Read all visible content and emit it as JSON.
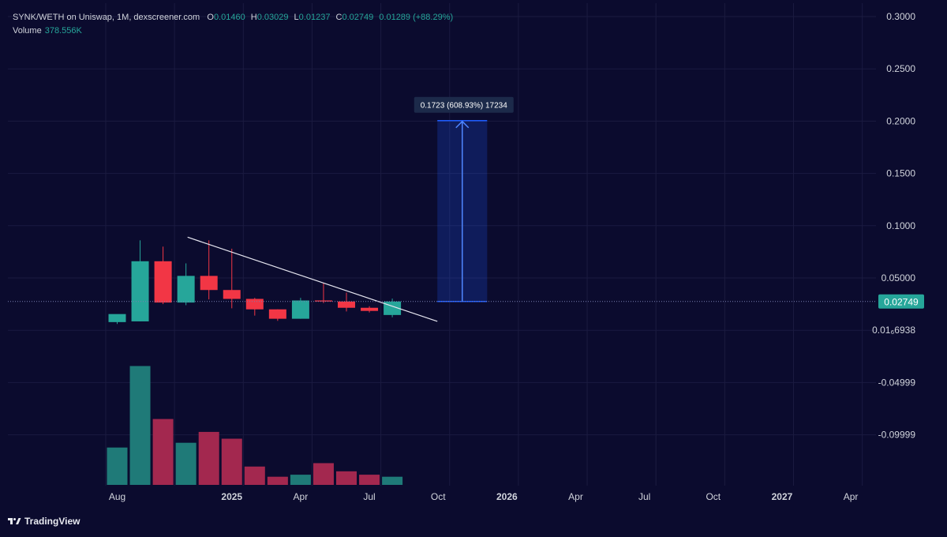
{
  "header": {
    "title": "SYNK/WETH on Uniswap, 1M, dexscreener.com",
    "open_label": "O",
    "open": "0.01460",
    "high_label": "H",
    "high": "0.03029",
    "low_label": "L",
    "low": "0.01237",
    "close_label": "C",
    "close": "0.02749",
    "change": "0.01289 (+88.29%)",
    "volume_label": "Volume",
    "volume_value": "378.556K"
  },
  "brand": {
    "name": "TradingView",
    "icon": "tradingview-logo-icon"
  },
  "colors": {
    "background": "#0b0b2e",
    "up": "#26a69a",
    "down": "#f23645",
    "volume_up": "#1f7a78",
    "volume_down": "#a3284f",
    "measure": "#1e5dff",
    "grid": "#1b1b40",
    "price_line": "#7a7fb0"
  },
  "chart_data": {
    "type": "candlestick",
    "series": [
      {
        "name": "SYNK/WETH",
        "candles": [
          {
            "o": 0.0078,
            "h": 0.015,
            "l": 0.006,
            "c": 0.0155,
            "v": 55
          },
          {
            "o": 0.0085,
            "h": 0.086,
            "l": 0.0085,
            "c": 0.066,
            "v": 175
          },
          {
            "o": 0.066,
            "h": 0.08,
            "l": 0.025,
            "c": 0.0265,
            "v": 97
          },
          {
            "o": 0.0265,
            "h": 0.064,
            "l": 0.024,
            "c": 0.052,
            "v": 62
          },
          {
            "o": 0.052,
            "h": 0.086,
            "l": 0.0295,
            "c": 0.0385,
            "v": 78
          },
          {
            "o": 0.0385,
            "h": 0.078,
            "l": 0.021,
            "c": 0.03,
            "v": 68
          },
          {
            "o": 0.03,
            "h": 0.031,
            "l": 0.014,
            "c": 0.02,
            "v": 27
          },
          {
            "o": 0.02,
            "h": 0.02,
            "l": 0.009,
            "c": 0.011,
            "v": 12
          },
          {
            "o": 0.011,
            "h": 0.031,
            "l": 0.011,
            "c": 0.0285,
            "v": 15
          },
          {
            "o": 0.0285,
            "h": 0.045,
            "l": 0.026,
            "c": 0.0275,
            "v": 32
          },
          {
            "o": 0.0275,
            "h": 0.036,
            "l": 0.018,
            "c": 0.0215,
            "v": 20
          },
          {
            "o": 0.0215,
            "h": 0.023,
            "l": 0.017,
            "c": 0.0185,
            "v": 15
          },
          {
            "o": 0.0146,
            "h": 0.0303,
            "l": 0.0124,
            "c": 0.0275,
            "v": 12
          }
        ]
      }
    ],
    "y_axis_labels": [
      "0.3000",
      "0.2500",
      "0.2000",
      "0.1500",
      "0.1000",
      "0.05000",
      "0.01₆6938",
      "-0.04999",
      "-0.09999"
    ],
    "y_axis_values": [
      0.3,
      0.25,
      0.2,
      0.15,
      0.1,
      0.05,
      0.0,
      -0.05,
      -0.1
    ],
    "x_axis_labels": [
      "Aug",
      "2025",
      "Apr",
      "Jul",
      "Oct",
      "2026",
      "Apr",
      "Jul",
      "Oct",
      "2027",
      "Apr"
    ],
    "x_axis_months": [
      0,
      5,
      8,
      11,
      14,
      17,
      20,
      23,
      26,
      29,
      32
    ],
    "x_axis_bold": [
      false,
      true,
      false,
      false,
      false,
      true,
      false,
      false,
      false,
      true,
      false
    ],
    "ylim": [
      -0.125,
      0.305
    ],
    "current_price": {
      "value": 0.02749,
      "label": "0.02749"
    },
    "trendline": {
      "from": {
        "month": 4,
        "price": 0.089
      },
      "to": {
        "month": 14,
        "price": 0.0085
      }
    },
    "measure": {
      "month_from": 14,
      "month_to": 16,
      "price_from": 0.0275,
      "price_to": 0.2005,
      "label": "0.1723 (608.93%) 17234"
    },
    "grid": true,
    "legend": "top-left"
  }
}
